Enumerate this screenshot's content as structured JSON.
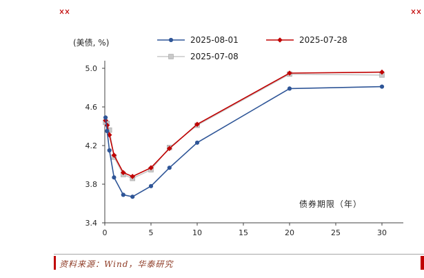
{
  "page": {
    "source_note": "资料来源：Wind，华泰研究",
    "accent_red": "#c00000",
    "source_color": "#8e3b25"
  },
  "chart_data": {
    "type": "line",
    "title": "",
    "ylabel": "(美债, %)",
    "xlabel": "债券期限（年）",
    "x": [
      0.08,
      0.25,
      0.5,
      1,
      2,
      3,
      5,
      7,
      10,
      20,
      30
    ],
    "series": [
      {
        "name": "2025-08-01",
        "color": "#2e5597",
        "marker": "circle",
        "values": [
          4.49,
          4.35,
          4.15,
          3.87,
          3.69,
          3.67,
          3.78,
          3.97,
          4.23,
          4.79,
          4.81
        ]
      },
      {
        "name": "2025-07-28",
        "color": "#c00000",
        "marker": "diamond",
        "values": [
          4.46,
          4.41,
          4.31,
          4.1,
          3.92,
          3.88,
          3.97,
          4.17,
          4.42,
          4.95,
          4.96
        ]
      },
      {
        "name": "2025-07-08",
        "color": "#c9c9c9",
        "marker": "square",
        "values": [
          4.44,
          4.43,
          4.36,
          4.08,
          3.9,
          3.86,
          3.95,
          4.18,
          4.41,
          4.94,
          4.93
        ]
      }
    ],
    "xlim": [
      0,
      30
    ],
    "ylim": [
      3.4,
      5.0
    ],
    "x_ticks": [
      0,
      5,
      10,
      15,
      20,
      25,
      30
    ],
    "y_ticks": [
      3.4,
      3.8,
      4.2,
      4.6,
      5.0
    ],
    "grid": false,
    "legend_position": "top-center"
  }
}
